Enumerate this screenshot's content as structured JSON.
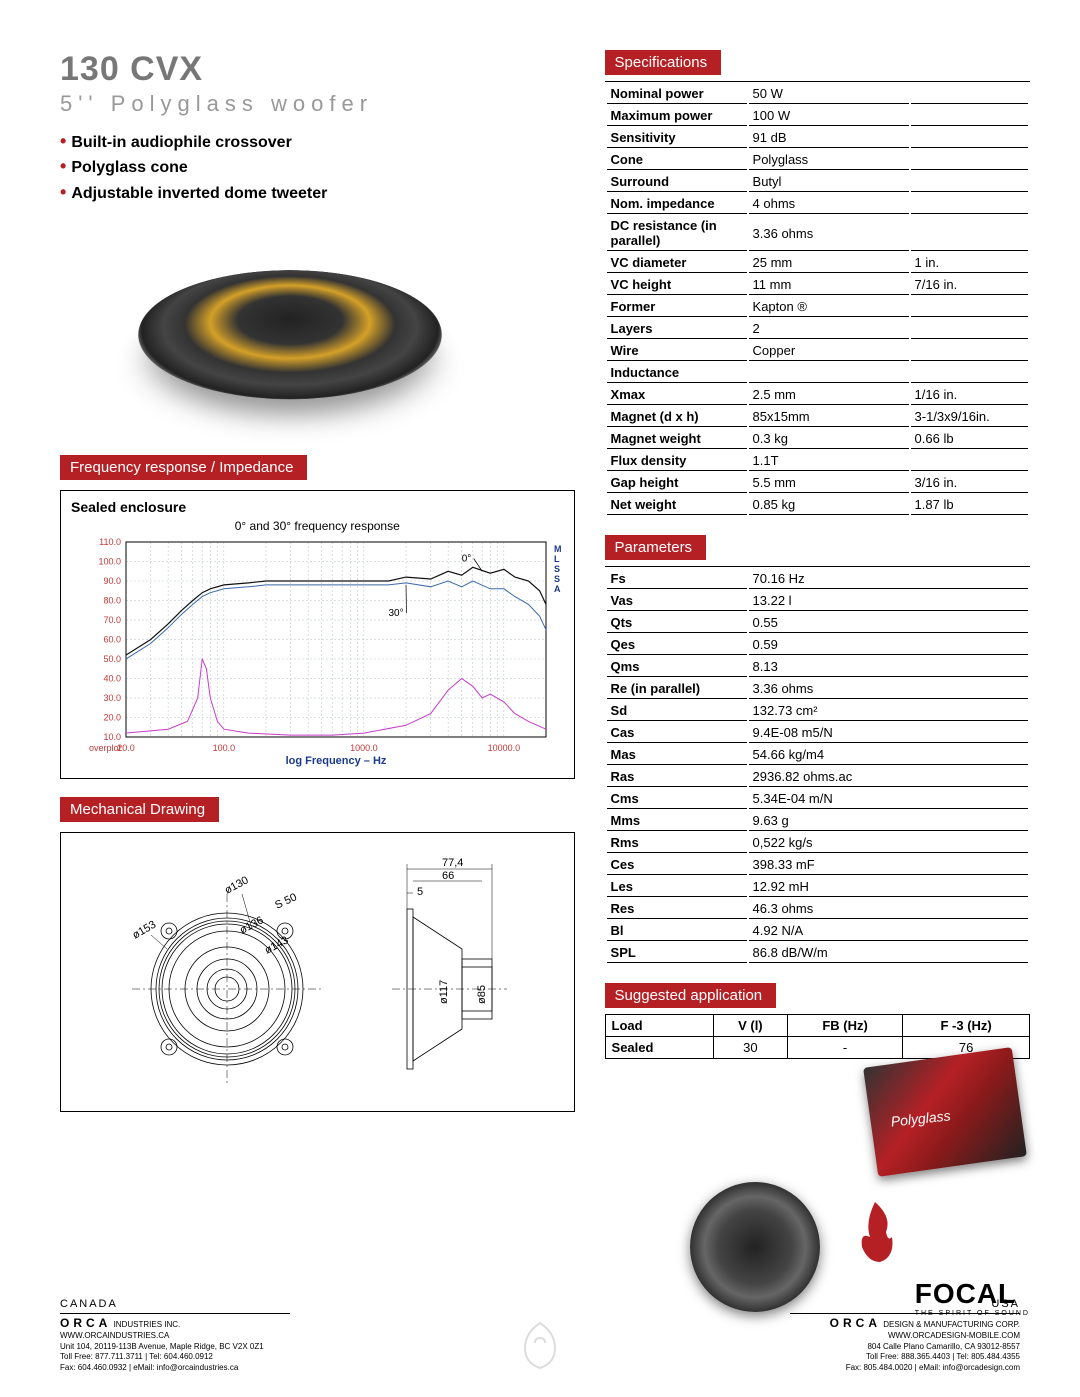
{
  "header": {
    "title": "130 CVX",
    "subtitle": "5'' Polyglass woofer",
    "bullets": [
      "Built-in audiophile crossover",
      "Polyglass cone",
      "Adjustable inverted dome tweeter"
    ]
  },
  "sections": {
    "freq_label": "Frequency response / Impedance",
    "mech_label": "Mechanical Drawing",
    "spec_label": "Specifications",
    "param_label": "Parameters",
    "app_label": "Suggested application"
  },
  "freq_chart": {
    "enclosure_title": "Sealed enclosure",
    "subtitle": "0° and 30° frequency response",
    "x_label": "log Frequency – Hz",
    "x_ticks": [
      "20.0",
      "100.0",
      "1000.0",
      "10000.0"
    ],
    "y_ticks": [
      "10.0",
      "20.0",
      "30.0",
      "40.0",
      "50.0",
      "60.0",
      "70.0",
      "80.0",
      "90.0",
      "100.0",
      "110.0"
    ],
    "overplot_label": "overplot",
    "mlssa_label": "MLSSA",
    "annot_0": "0°",
    "annot_30": "30°",
    "colors": {
      "grid": "#b4c2c2",
      "axis_text": "#c23838",
      "curve_main": "#101010",
      "curve_30": "#3a6aa8",
      "impedance": "#c83cc8",
      "xlabel": "#1a3a8a",
      "mlssa": "#1a3a8a"
    },
    "xlim": [
      20,
      20000
    ],
    "ylim": [
      10,
      110
    ],
    "response_curve": [
      [
        20,
        52
      ],
      [
        30,
        60
      ],
      [
        40,
        68
      ],
      [
        50,
        75
      ],
      [
        60,
        80
      ],
      [
        70,
        84
      ],
      [
        80,
        86
      ],
      [
        100,
        88
      ],
      [
        150,
        89
      ],
      [
        200,
        90
      ],
      [
        300,
        90
      ],
      [
        500,
        90
      ],
      [
        700,
        90
      ],
      [
        1000,
        90
      ],
      [
        1500,
        90
      ],
      [
        2000,
        92
      ],
      [
        3000,
        91
      ],
      [
        4000,
        95
      ],
      [
        5000,
        93
      ],
      [
        6000,
        97
      ],
      [
        8000,
        94
      ],
      [
        10000,
        96
      ],
      [
        12000,
        92
      ],
      [
        15000,
        90
      ],
      [
        18000,
        85
      ],
      [
        20000,
        78
      ]
    ],
    "response_curve_30": [
      [
        20,
        50
      ],
      [
        30,
        58
      ],
      [
        40,
        66
      ],
      [
        50,
        73
      ],
      [
        60,
        78
      ],
      [
        70,
        82
      ],
      [
        80,
        84
      ],
      [
        100,
        86
      ],
      [
        150,
        87
      ],
      [
        200,
        88
      ],
      [
        300,
        88
      ],
      [
        500,
        88
      ],
      [
        700,
        88
      ],
      [
        1000,
        88
      ],
      [
        1500,
        88
      ],
      [
        2000,
        89
      ],
      [
        3000,
        87
      ],
      [
        4000,
        90
      ],
      [
        5000,
        87
      ],
      [
        6000,
        90
      ],
      [
        8000,
        86
      ],
      [
        10000,
        86
      ],
      [
        12000,
        82
      ],
      [
        15000,
        78
      ],
      [
        18000,
        72
      ],
      [
        20000,
        65
      ]
    ],
    "impedance_curve": [
      [
        20,
        12
      ],
      [
        40,
        14
      ],
      [
        55,
        18
      ],
      [
        65,
        30
      ],
      [
        70,
        50
      ],
      [
        75,
        45
      ],
      [
        80,
        30
      ],
      [
        90,
        18
      ],
      [
        100,
        14
      ],
      [
        150,
        12
      ],
      [
        300,
        11
      ],
      [
        600,
        11
      ],
      [
        1000,
        12
      ],
      [
        2000,
        16
      ],
      [
        3000,
        22
      ],
      [
        4000,
        34
      ],
      [
        5000,
        40
      ],
      [
        6000,
        36
      ],
      [
        7000,
        30
      ],
      [
        8000,
        32
      ],
      [
        10000,
        28
      ],
      [
        12000,
        22
      ],
      [
        15000,
        18
      ],
      [
        20000,
        14
      ]
    ]
  },
  "mech_drawing": {
    "dims": {
      "d153": "ø153",
      "d130": "ø130",
      "d136": "ø136",
      "d143": "ø143",
      "d117": "ø117",
      "d85": "ø85",
      "s50": "S 50",
      "w774": "77,4",
      "w66": "66",
      "w5": "5"
    }
  },
  "specifications": [
    {
      "label": "Nominal power",
      "v1": "50 W",
      "v2": ""
    },
    {
      "label": "Maximum power",
      "v1": "100 W",
      "v2": ""
    },
    {
      "label": "Sensitivity",
      "v1": "91 dB",
      "v2": ""
    },
    {
      "label": "Cone",
      "v1": "Polyglass",
      "v2": ""
    },
    {
      "label": "Surround",
      "v1": "Butyl",
      "v2": ""
    },
    {
      "label": "Nom. impedance",
      "v1": "4 ohms",
      "v2": ""
    },
    {
      "label": "DC resistance (in parallel)",
      "v1": "3.36 ohms",
      "v2": ""
    },
    {
      "label": "VC diameter",
      "v1": "25 mm",
      "v2": "1 in."
    },
    {
      "label": "VC height",
      "v1": "11 mm",
      "v2": "7/16 in."
    },
    {
      "label": "Former",
      "v1": "Kapton ®",
      "v2": ""
    },
    {
      "label": "Layers",
      "v1": "2",
      "v2": ""
    },
    {
      "label": "Wire",
      "v1": "Copper",
      "v2": ""
    },
    {
      "label": "Inductance",
      "v1": "",
      "v2": ""
    },
    {
      "label": "Xmax",
      "v1": "2.5 mm",
      "v2": "1/16 in."
    },
    {
      "label": "Magnet (d x h)",
      "v1": "85x15mm",
      "v2": "3-1/3x9/16in."
    },
    {
      "label": "Magnet weight",
      "v1": "0.3 kg",
      "v2": "0.66 lb"
    },
    {
      "label": "Flux density",
      "v1": "1.1T",
      "v2": ""
    },
    {
      "label": "Gap height",
      "v1": "5.5 mm",
      "v2": "3/16 in."
    },
    {
      "label": "Net weight",
      "v1": "0.85 kg",
      "v2": "1.87 lb"
    }
  ],
  "parameters": [
    {
      "label": "Fs",
      "v": "70.16 Hz"
    },
    {
      "label": "Vas",
      "v": "13.22 l"
    },
    {
      "label": "Qts",
      "v": "0.55"
    },
    {
      "label": "Qes",
      "v": "0.59"
    },
    {
      "label": "Qms",
      "v": "8.13"
    },
    {
      "label": "Re (in parallel)",
      "v": "3.36 ohms"
    },
    {
      "label": "Sd",
      "v": "132.73 cm²"
    },
    {
      "label": "Cas",
      "v": "9.4E-08 m5/N"
    },
    {
      "label": "Mas",
      "v": "54.66 kg/m4"
    },
    {
      "label": "Ras",
      "v": "2936.82 ohms.ac"
    },
    {
      "label": "Cms",
      "v": "5.34E-04 m/N"
    },
    {
      "label": "Mms",
      "v": "9.63 g"
    },
    {
      "label": "Rms",
      "v": "0,522 kg/s"
    },
    {
      "label": "Ces",
      "v": "398.33 mF"
    },
    {
      "label": "Les",
      "v": "12.92 mH"
    },
    {
      "label": "Res",
      "v": "46.3 ohms"
    },
    {
      "label": "Bl",
      "v": "4.92 N/A"
    },
    {
      "label": "SPL",
      "v": "86.8 dB/W/m"
    }
  ],
  "application": {
    "headers": [
      "Load",
      "V (l)",
      "FB (Hz)",
      "F -3 (Hz)"
    ],
    "row": [
      "Sealed",
      "30",
      "-",
      "76"
    ]
  },
  "badge_text": "Polyglass",
  "footer": {
    "canada": {
      "country": "CANADA",
      "brand": "ORCA",
      "sub": "INDUSTRIES INC.",
      "l1": "Unit 104, 20119-113B Avenue, Maple Ridge, BC V2X 0Z1",
      "l2": "WWW.ORCAINDUSTRIES.CA",
      "l3": "Toll Free: 877.711.3711 | Tel: 604.460.0912",
      "l4": "Fax: 604.460.0932 | eMail: info@orcaindustries.ca"
    },
    "usa": {
      "country": "USA",
      "brand": "ORCA",
      "sub": "DESIGN & MANUFACTURING CORP.",
      "l1": "804 Calle Plano Camarillo, CA 93012-8557",
      "l2": "WWW.ORCADESIGN-MOBILE.COM",
      "l3": "Toll Free: 888.365.4403 | Tel: 805.484.4355",
      "l4": "Fax: 805.484.0020 | eMail: info@orcadesign.com"
    },
    "logo": "FOCAL",
    "logo_tag": "THE SPIRIT OF SOUND"
  }
}
